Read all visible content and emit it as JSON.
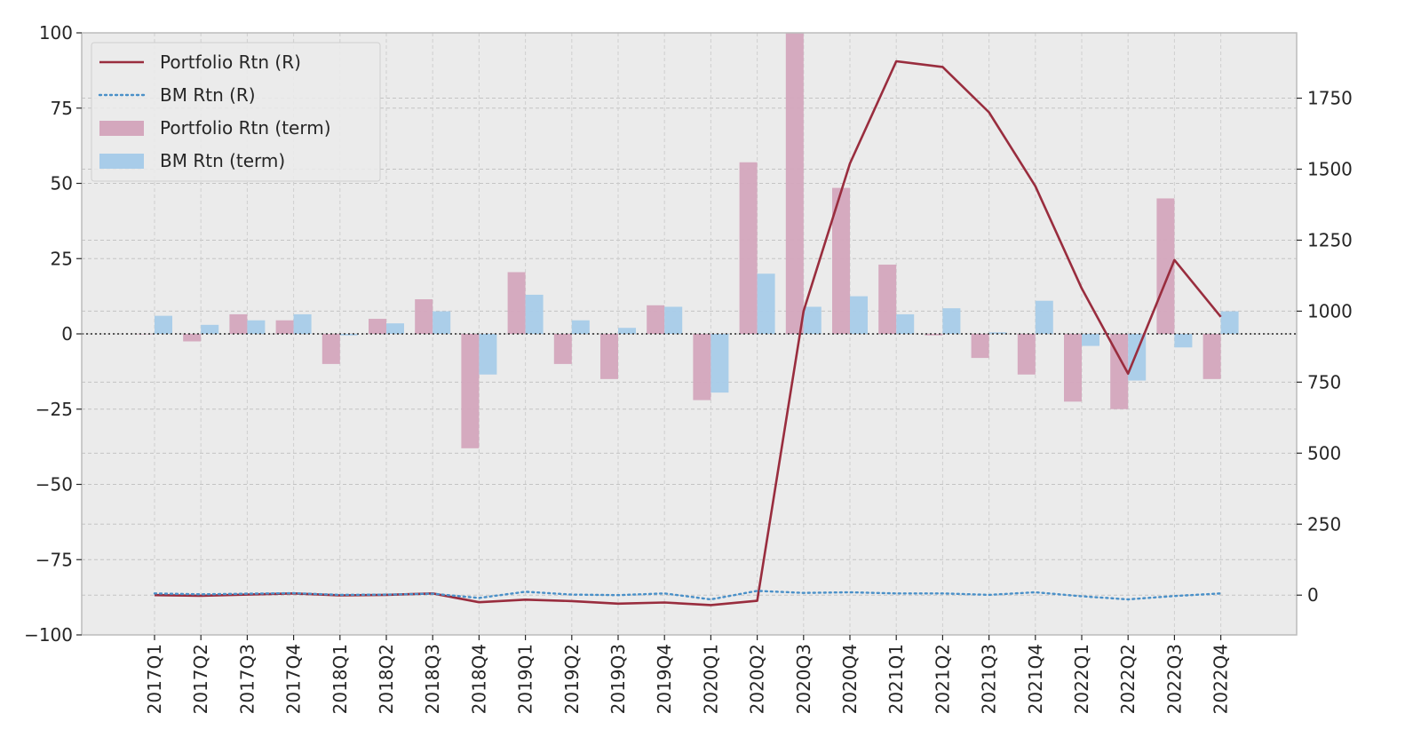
{
  "chart_data": {
    "type": "bar",
    "categories": [
      "2017Q1",
      "2017Q2",
      "2017Q3",
      "2017Q4",
      "2018Q1",
      "2018Q2",
      "2018Q3",
      "2018Q4",
      "2019Q1",
      "2019Q2",
      "2019Q3",
      "2019Q4",
      "2020Q1",
      "2020Q2",
      "2020Q3",
      "2020Q4",
      "2021Q1",
      "2021Q2",
      "2021Q3",
      "2021Q4",
      "2022Q1",
      "2022Q2",
      "2022Q3",
      "2022Q4"
    ],
    "bar_series": [
      {
        "name": "Portfolio Rtn (term)",
        "color": "#d4a7bd",
        "values": [
          0,
          -2.5,
          6.5,
          4.5,
          -10,
          5,
          11.5,
          -38,
          20.5,
          -10,
          -15,
          9.5,
          -22,
          57,
          100,
          48.5,
          23,
          -0.5,
          -8,
          -13.5,
          -22.5,
          -25,
          45,
          -15
        ]
      },
      {
        "name": "BM Rtn (term)",
        "color": "#a8cce9",
        "values": [
          6,
          3,
          4.5,
          6.5,
          -0.5,
          3.5,
          7.5,
          -13.5,
          13,
          4.5,
          2,
          9,
          -19.5,
          20,
          9,
          12.5,
          6.5,
          8.5,
          0.5,
          11,
          -4,
          -15.5,
          -4.5,
          7.5
        ]
      }
    ],
    "line_series": [
      {
        "name": "Portfolio Rtn (R)",
        "color": "#992d3e",
        "style": "solid",
        "values": [
          0,
          -2,
          2,
          6,
          -1,
          1,
          6,
          -25,
          -16,
          -21,
          -30,
          -26,
          -35,
          -20,
          1000,
          1520,
          1880,
          1860,
          1700,
          1440,
          1080,
          780,
          1180,
          980
        ]
      },
      {
        "name": "BM Rtn (R)",
        "color": "#4a90c8",
        "style": "dotted",
        "values": [
          6,
          3,
          5,
          7,
          1,
          2,
          5,
          -10,
          12,
          2,
          0,
          6,
          -15,
          15,
          8,
          10,
          6,
          6,
          1,
          10,
          -4,
          -15,
          -3,
          6
        ]
      }
    ],
    "y_left": {
      "lim": [
        -100,
        100
      ],
      "ticks": [
        -100,
        -75,
        -50,
        -25,
        0,
        25,
        50,
        75,
        100
      ],
      "tick_labels": [
        "−100",
        "−75",
        "−50",
        "−25",
        "0",
        "25",
        "50",
        "75",
        "100"
      ]
    },
    "y_right": {
      "lim": [
        -140,
        1980
      ],
      "ticks": [
        0,
        250,
        500,
        750,
        1000,
        1250,
        1500,
        1750
      ],
      "tick_labels": [
        "0",
        "250",
        "500",
        "750",
        "1000",
        "1250",
        "1500",
        "1750"
      ]
    },
    "title": "",
    "xlabel": "",
    "ylabel": "",
    "grid": true,
    "zero_line": "dotted",
    "legend_position": "top-left",
    "legend_entries": [
      {
        "label": "Portfolio Rtn (R)",
        "kind": "line-solid",
        "color": "#992d3e"
      },
      {
        "label": "BM Rtn (R)",
        "kind": "line-dotted",
        "color": "#4a90c8"
      },
      {
        "label": "Portfolio Rtn (term)",
        "kind": "patch",
        "color": "#d4a7bd"
      },
      {
        "label": "BM Rtn (term)",
        "kind": "patch",
        "color": "#a8cce9"
      }
    ]
  }
}
